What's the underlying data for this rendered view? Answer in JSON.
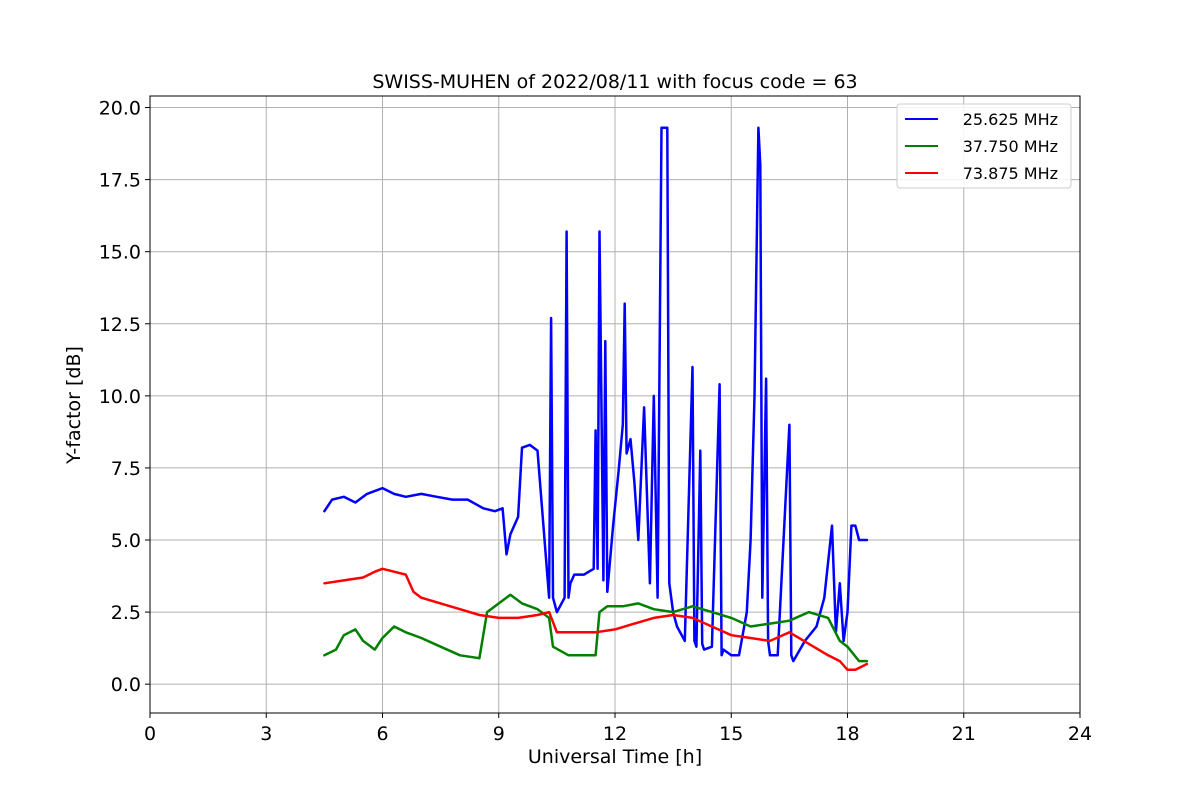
{
  "chart_data": {
    "type": "line",
    "title": "SWISS-MUHEN of 2022/08/11 with focus code = 63",
    "xlabel": "Universal Time [h]",
    "ylabel": "Y-factor [dB]",
    "xlim": [
      0,
      24
    ],
    "ylim": [
      -1.0,
      20.4
    ],
    "xticks": [
      0,
      3,
      6,
      9,
      12,
      15,
      18,
      21,
      24
    ],
    "xtick_labels": [
      "0",
      "3",
      "6",
      "9",
      "12",
      "15",
      "18",
      "21",
      "24"
    ],
    "yticks": [
      0,
      2.5,
      5,
      7.5,
      10,
      12.5,
      15,
      17.5,
      20
    ],
    "ytick_labels": [
      "0.0",
      "2.5",
      "5.0",
      "7.5",
      "10.0",
      "12.5",
      "15.0",
      "17.5",
      "20.0"
    ],
    "grid": true,
    "legend_position": "top-right",
    "series": [
      {
        "name": "25.625 MHz",
        "color": "#0000ff",
        "x": [
          4.5,
          4.7,
          5.0,
          5.3,
          5.6,
          6.0,
          6.3,
          6.6,
          7.0,
          7.4,
          7.8,
          8.2,
          8.6,
          8.9,
          9.1,
          9.2,
          9.3,
          9.5,
          9.6,
          9.8,
          10.0,
          10.3,
          10.35,
          10.4,
          10.5,
          10.7,
          10.75,
          10.8,
          10.85,
          10.95,
          11.2,
          11.45,
          11.5,
          11.55,
          11.6,
          11.7,
          11.75,
          11.8,
          11.95,
          12.1,
          12.2,
          12.25,
          12.3,
          12.4,
          12.5,
          12.6,
          12.75,
          12.9,
          13.0,
          13.1,
          13.2,
          13.25,
          13.3,
          13.35,
          13.4,
          13.5,
          13.6,
          13.8,
          14.0,
          14.05,
          14.1,
          14.2,
          14.25,
          14.3,
          14.5,
          14.7,
          14.75,
          14.8,
          15.0,
          15.2,
          15.4,
          15.5,
          15.6,
          15.7,
          15.75,
          15.8,
          15.9,
          15.95,
          16.0,
          16.2,
          16.5,
          16.55,
          16.6,
          16.9,
          17.2,
          17.4,
          17.6,
          17.7,
          17.8,
          17.9,
          18.0,
          18.1,
          18.2,
          18.3,
          18.5
        ],
        "y": [
          6.0,
          6.4,
          6.5,
          6.3,
          6.6,
          6.8,
          6.6,
          6.5,
          6.6,
          6.5,
          6.4,
          6.4,
          6.1,
          6.0,
          6.1,
          4.5,
          5.2,
          5.8,
          8.2,
          8.3,
          8.1,
          3.0,
          12.7,
          3.0,
          2.5,
          3.0,
          15.7,
          3.0,
          3.5,
          3.8,
          3.8,
          4.0,
          8.8,
          4.0,
          15.7,
          3.6,
          11.9,
          3.2,
          5.5,
          7.5,
          9.0,
          13.2,
          8.0,
          8.5,
          7.0,
          5.0,
          9.6,
          3.5,
          10.0,
          3.0,
          19.3,
          19.3,
          19.3,
          19.3,
          3.5,
          2.5,
          2.0,
          1.5,
          11.0,
          1.5,
          1.3,
          8.1,
          1.4,
          1.2,
          1.3,
          10.4,
          1.0,
          1.2,
          1.0,
          1.0,
          2.5,
          5.0,
          10.0,
          19.3,
          18.0,
          3.0,
          10.6,
          1.5,
          1.0,
          1.0,
          9.0,
          1.0,
          0.8,
          1.5,
          2.0,
          3.0,
          5.5,
          1.8,
          3.5,
          1.5,
          2.5,
          5.5,
          5.5,
          5.0,
          5.0
        ]
      },
      {
        "name": "37.750 MHz",
        "color": "#008000",
        "x": [
          4.5,
          4.8,
          5.0,
          5.3,
          5.5,
          5.8,
          6.0,
          6.3,
          6.6,
          7.0,
          7.5,
          8.0,
          8.5,
          8.7,
          9.0,
          9.3,
          9.6,
          10.0,
          10.3,
          10.4,
          10.8,
          11.2,
          11.5,
          11.6,
          11.8,
          12.2,
          12.6,
          13.0,
          13.5,
          14.0,
          14.5,
          15.0,
          15.5,
          16.0,
          16.5,
          17.0,
          17.5,
          17.8,
          18.0,
          18.3,
          18.5
        ],
        "y": [
          1.0,
          1.2,
          1.7,
          1.9,
          1.5,
          1.2,
          1.6,
          2.0,
          1.8,
          1.6,
          1.3,
          1.0,
          0.9,
          2.5,
          2.8,
          3.1,
          2.8,
          2.6,
          2.3,
          1.3,
          1.0,
          1.0,
          1.0,
          2.5,
          2.7,
          2.7,
          2.8,
          2.6,
          2.5,
          2.7,
          2.5,
          2.3,
          2.0,
          2.1,
          2.2,
          2.5,
          2.3,
          1.5,
          1.3,
          0.8,
          0.8
        ]
      },
      {
        "name": "73.875 MHz",
        "color": "#ff0000",
        "x": [
          4.5,
          5.0,
          5.5,
          5.8,
          6.0,
          6.3,
          6.6,
          6.8,
          7.0,
          7.5,
          8.0,
          8.5,
          9.0,
          9.5,
          10.0,
          10.3,
          10.5,
          11.0,
          11.5,
          12.0,
          12.5,
          13.0,
          13.5,
          14.0,
          14.5,
          15.0,
          15.5,
          16.0,
          16.5,
          17.0,
          17.5,
          17.8,
          18.0,
          18.2,
          18.5
        ],
        "y": [
          3.5,
          3.6,
          3.7,
          3.9,
          4.0,
          3.9,
          3.8,
          3.2,
          3.0,
          2.8,
          2.6,
          2.4,
          2.3,
          2.3,
          2.4,
          2.5,
          1.8,
          1.8,
          1.8,
          1.9,
          2.1,
          2.3,
          2.4,
          2.3,
          2.0,
          1.7,
          1.6,
          1.5,
          1.8,
          1.4,
          1.0,
          0.8,
          0.5,
          0.5,
          0.7
        ]
      }
    ]
  }
}
